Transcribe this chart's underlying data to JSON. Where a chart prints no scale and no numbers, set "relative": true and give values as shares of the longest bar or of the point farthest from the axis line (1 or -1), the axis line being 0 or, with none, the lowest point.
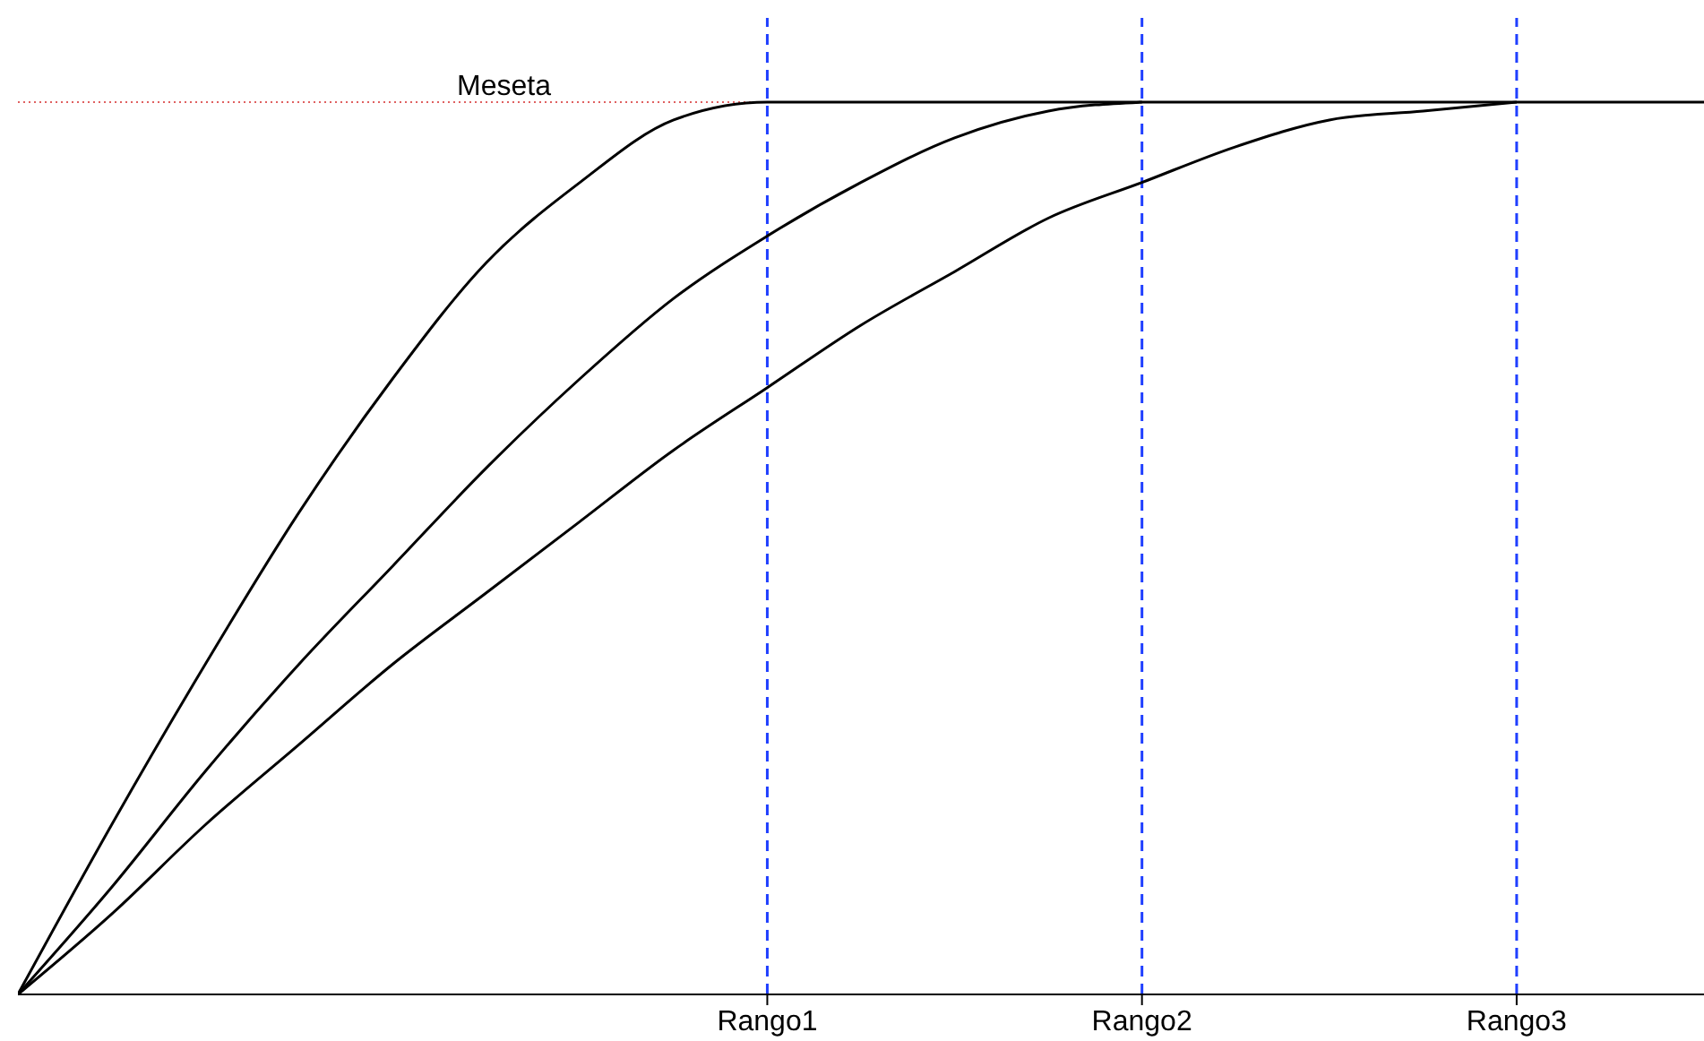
{
  "chart_data": {
    "type": "line",
    "relative": true,
    "marker": "none",
    "line_style": "solid",
    "categories": [
      null,
      null,
      null,
      null,
      null,
      null,
      null,
      null,
      "Rango1",
      null,
      null,
      null,
      "Rango2",
      null,
      null,
      null,
      "Rango3",
      null,
      null
    ],
    "ref_lines": [
      {
        "axis": "y",
        "value": 1,
        "label": "Meseta",
        "color": "#e06060",
        "line_style": "dotted"
      },
      {
        "axis": "x",
        "value": "Rango1",
        "label": null,
        "color": "#1f3fff",
        "line_style": "dashed"
      },
      {
        "axis": "x",
        "value": "Rango2",
        "label": null,
        "color": "#1f3fff",
        "line_style": "dashed"
      },
      {
        "axis": "x",
        "value": "Rango3",
        "label": null,
        "color": "#1f3fff",
        "line_style": "dashed"
      }
    ],
    "series": [
      {
        "color": "#000000",
        "values": [
          0,
          0.19,
          0.37,
          0.54,
          0.69,
          0.82,
          0.91,
          0.98,
          1,
          1,
          1,
          1,
          1,
          1,
          1,
          1,
          1,
          1,
          1
        ]
      },
      {
        "color": "#000000",
        "values": [
          0,
          0.12,
          0.25,
          0.37,
          0.48,
          0.59,
          0.69,
          0.78,
          0.85,
          0.91,
          0.96,
          0.99,
          1,
          null,
          null,
          null,
          null,
          null,
          null
        ]
      },
      {
        "color": "#000000",
        "values": [
          0,
          0.09,
          0.19,
          0.28,
          0.37,
          0.45,
          0.53,
          0.61,
          0.68,
          0.75,
          0.81,
          0.87,
          0.91,
          0.95,
          0.98,
          0.99,
          1,
          null,
          null
        ]
      }
    ]
  }
}
